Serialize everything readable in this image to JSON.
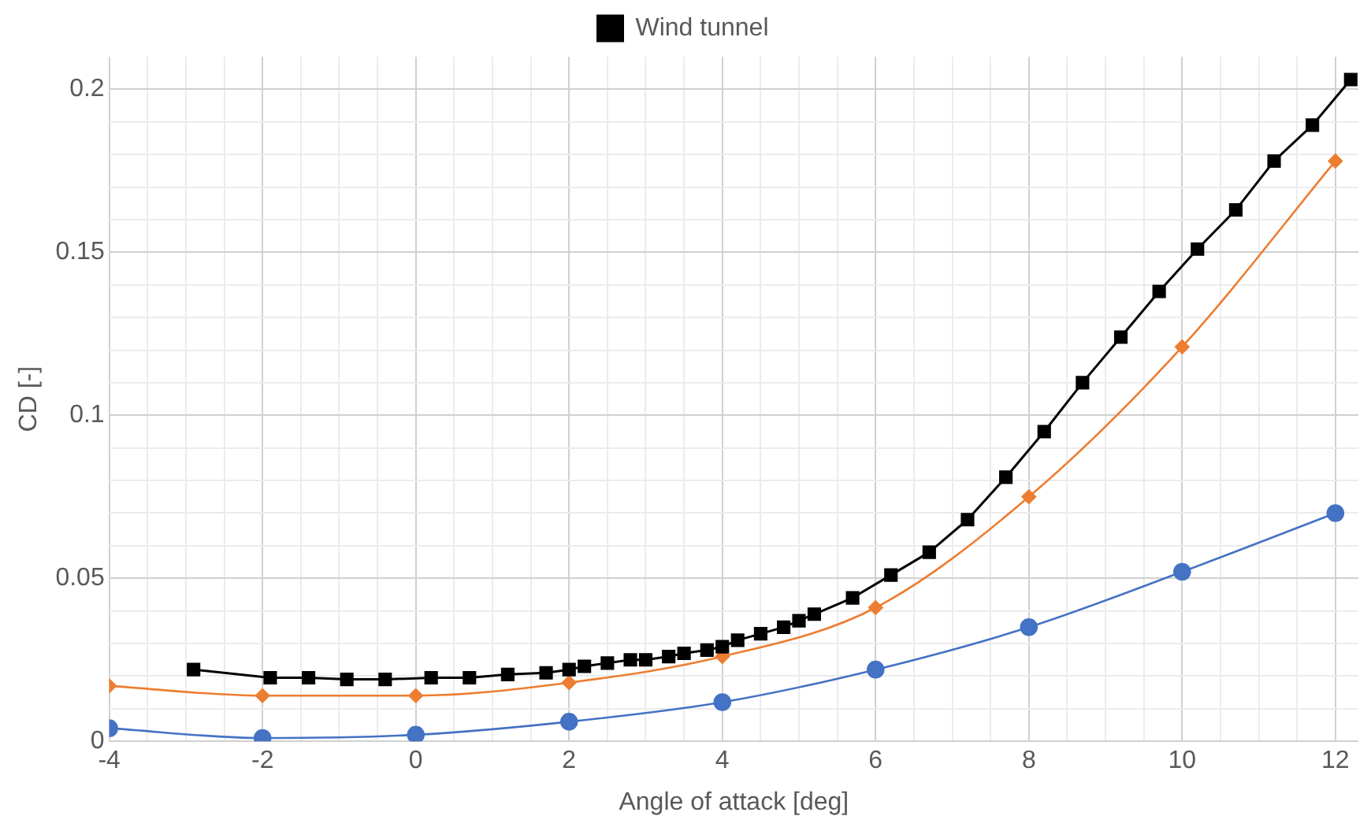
{
  "chart_data": {
    "type": "line",
    "xlabel": "Angle of attack [deg]",
    "ylabel": "CD [-]",
    "xlim": [
      -4,
      12.3
    ],
    "ylim": [
      0,
      0.21
    ],
    "xticks": [
      -4,
      {
        "value": -3.5,
        "label": null
      },
      {
        "value": -3,
        "label": null
      },
      {
        "value": -2.5,
        "label": null
      },
      -2,
      {
        "value": -1.5,
        "label": null
      },
      {
        "value": -1,
        "label": null
      },
      {
        "value": -0.5,
        "label": null
      },
      0,
      {
        "value": 0.5,
        "label": null
      },
      {
        "value": 1,
        "label": null
      },
      {
        "value": 1.5,
        "label": null
      },
      2,
      {
        "value": 2.5,
        "label": null
      },
      {
        "value": 3,
        "label": null
      },
      {
        "value": 3.5,
        "label": null
      },
      4,
      {
        "value": 4.5,
        "label": null
      },
      {
        "value": 5,
        "label": null
      },
      {
        "value": 5.5,
        "label": null
      },
      6,
      {
        "value": 6.5,
        "label": null
      },
      {
        "value": 7,
        "label": null
      },
      {
        "value": 7.5,
        "label": null
      },
      8,
      {
        "value": 8.5,
        "label": null
      },
      {
        "value": 9,
        "label": null
      },
      {
        "value": 9.5,
        "label": null
      },
      10,
      {
        "value": 10.5,
        "label": null
      },
      {
        "value": 11,
        "label": null
      },
      {
        "value": 11.5,
        "label": null
      },
      12
    ],
    "yticks": [
      0,
      {
        "value": 0.01,
        "label": null
      },
      {
        "value": 0.02,
        "label": null
      },
      {
        "value": 0.03,
        "label": null
      },
      {
        "value": 0.04,
        "label": null
      },
      0.05,
      {
        "value": 0.06,
        "label": null
      },
      {
        "value": 0.07,
        "label": null
      },
      {
        "value": 0.08,
        "label": null
      },
      {
        "value": 0.09,
        "label": null
      },
      0.1,
      {
        "value": 0.11,
        "label": null
      },
      {
        "value": 0.12,
        "label": null
      },
      {
        "value": 0.13,
        "label": null
      },
      {
        "value": 0.14,
        "label": null
      },
      0.15,
      {
        "value": 0.16,
        "label": null
      },
      {
        "value": 0.17,
        "label": null
      },
      {
        "value": 0.18,
        "label": null
      },
      {
        "value": 0.19,
        "label": null
      },
      0.2
    ],
    "grid": true,
    "legend": "top",
    "series": [
      {
        "name": "Wind tunnel",
        "color": "#000000",
        "marker": "square",
        "x": [
          -2.9,
          -1.9,
          -1.4,
          -0.9,
          -0.4,
          0.2,
          0.7,
          1.2,
          1.7,
          2.0,
          2.2,
          2.5,
          2.8,
          3.0,
          3.3,
          3.5,
          3.8,
          4.0,
          4.2,
          4.5,
          4.8,
          5.0,
          5.2,
          5.7,
          6.2,
          6.7,
          7.2,
          7.7,
          8.2,
          8.7,
          9.2,
          9.7,
          10.2,
          10.7,
          11.2,
          11.7,
          12.2
        ],
        "values": [
          0.022,
          0.0195,
          0.0195,
          0.019,
          0.019,
          0.0195,
          0.0195,
          0.0205,
          0.021,
          0.022,
          0.023,
          0.024,
          0.025,
          0.025,
          0.026,
          0.027,
          0.028,
          0.029,
          0.031,
          0.033,
          0.035,
          0.037,
          0.039,
          0.044,
          0.051,
          0.058,
          0.068,
          0.081,
          0.095,
          0.11,
          0.124,
          0.138,
          0.151,
          0.163,
          0.178,
          0.189,
          0.203
        ]
      },
      {
        "color": "#ed7d31",
        "marker": "diamond",
        "x": [
          -4,
          -2,
          0,
          2,
          4,
          6,
          8,
          10,
          12
        ],
        "values": [
          0.017,
          0.014,
          0.014,
          0.018,
          0.026,
          0.041,
          0.075,
          0.121,
          0.178
        ]
      },
      {
        "color": "#4472c4",
        "marker": "circle",
        "x": [
          -4,
          -2,
          0,
          2,
          4,
          6,
          8,
          10,
          12
        ],
        "values": [
          0.004,
          0.001,
          0.002,
          0.006,
          0.012,
          0.022,
          0.035,
          0.052,
          0.07
        ]
      }
    ]
  }
}
